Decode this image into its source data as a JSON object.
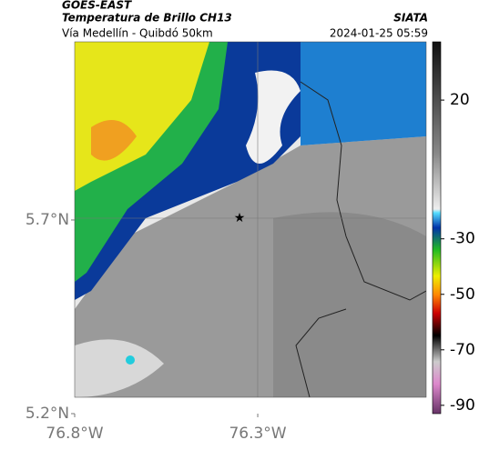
{
  "header": {
    "source": "GOES-EAST",
    "title": "Temperatura de Brillo CH13",
    "org": "SIATA",
    "subtitle": "Vía Medellín - Quibdó 50km",
    "datetime": "2024-01-25 05:59"
  },
  "map": {
    "lonlim": [
      -76.8,
      -75.84
    ],
    "latlim": [
      5.2,
      6.16
    ],
    "lonticks": [
      {
        "value": -76.8,
        "label": "76.8°W"
      },
      {
        "value": -76.3,
        "label": "76.3°W"
      }
    ],
    "latticks": [
      {
        "value": 5.7,
        "label": "5.7°N"
      },
      {
        "value": 5.2,
        "label": "5.2°N"
      }
    ],
    "colorbar": {
      "lim": [
        -93,
        41
      ],
      "ticks": [
        20,
        -30,
        -50,
        -70,
        -90
      ]
    }
  }
}
